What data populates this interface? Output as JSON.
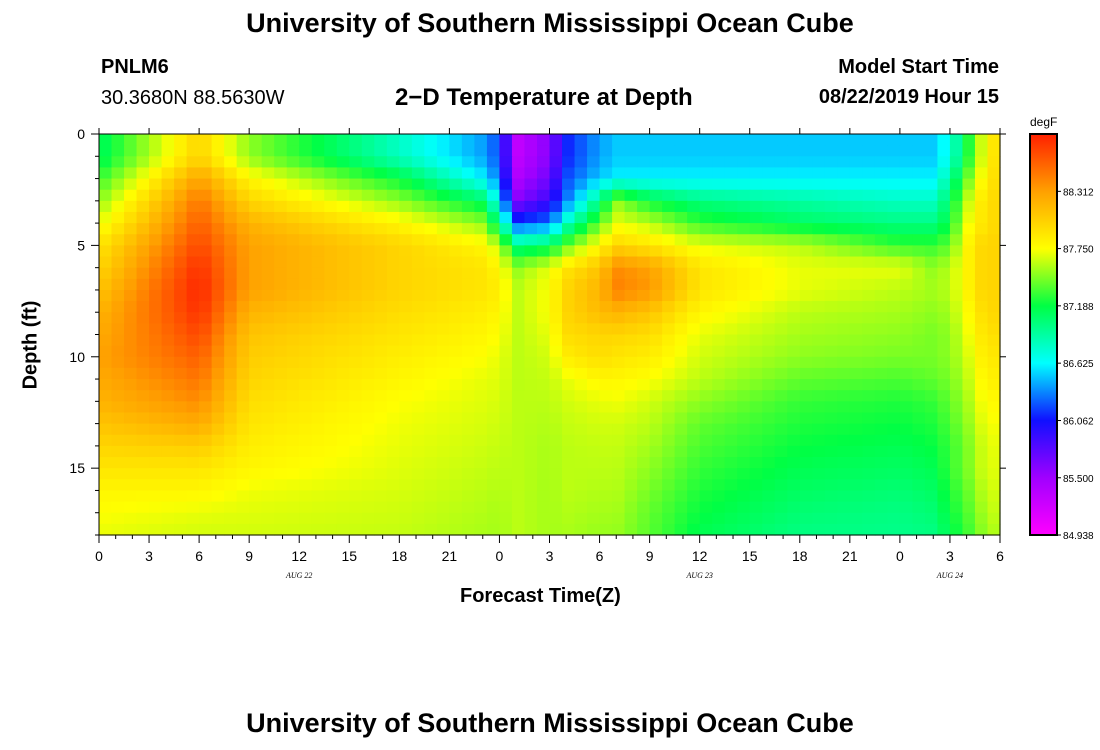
{
  "header": {
    "title": "University of Southern Mississippi Ocean Cube",
    "station_id": "PNLM6",
    "coordinates": "30.3680N 88.5630W",
    "plot_title": "2−D Temperature at Depth",
    "model_label": "Model Start Time",
    "model_start": "08/22/2019 Hour 15"
  },
  "footer": {
    "title": "University of Southern Mississippi Ocean Cube"
  },
  "chart_data": {
    "type": "heatmap",
    "title": "2−D Temperature at Depth",
    "xlabel": "Forecast Time(Z)",
    "ylabel": "Depth (ft)",
    "x_range_hours": [
      0,
      54
    ],
    "ylim": [
      0,
      18
    ],
    "y_reversed": true,
    "x_tick_labels": [
      "0",
      "3",
      "6",
      "9",
      "12",
      "15",
      "18",
      "21",
      "0",
      "3",
      "6",
      "9",
      "12",
      "15",
      "18",
      "21",
      "0",
      "3",
      "6"
    ],
    "y_ticks": [
      0,
      5,
      10,
      15
    ],
    "date_labels": [
      {
        "label": "AUG 22",
        "hour": 12
      },
      {
        "label": "AUG 23",
        "hour": 36
      },
      {
        "label": "AUG 24",
        "hour": 51
      }
    ],
    "colorbar": {
      "unit": "degF",
      "min": 84.938,
      "max": 88.875,
      "tick_labels": [
        "88.312",
        "87.750",
        "87.188",
        "86.625",
        "86.062",
        "85.500",
        "84.938"
      ],
      "tick_values": [
        88.312,
        87.75,
        87.188,
        86.625,
        86.062,
        85.5,
        84.938
      ],
      "colors": [
        "#ff00ff",
        "#a000ff",
        "#1010ff",
        "#00ffff",
        "#00ff44",
        "#ffff00",
        "#ffa000",
        "#ff2000"
      ]
    },
    "time_hours": [
      0,
      6,
      9,
      18,
      23,
      24,
      25,
      27,
      28,
      30,
      31,
      33,
      36,
      42,
      48,
      50,
      51,
      52,
      53,
      54
    ],
    "depth_ft": [
      0,
      1,
      2,
      3,
      4,
      5,
      6,
      7,
      8,
      9,
      10,
      11,
      12,
      13,
      14,
      15,
      16,
      17,
      18
    ],
    "temperature_degF": [
      [
        87.1,
        88.0,
        87.5,
        86.8,
        86.4,
        86.2,
        85.3,
        85.6,
        86.1,
        86.4,
        86.5,
        86.5,
        86.5,
        86.5,
        86.5,
        86.5,
        86.7,
        87.2,
        87.7,
        88.0
      ],
      [
        87.1,
        88.0,
        87.5,
        86.8,
        86.4,
        86.2,
        85.3,
        85.6,
        86.1,
        86.4,
        86.5,
        86.5,
        86.5,
        86.5,
        86.5,
        86.5,
        86.7,
        87.2,
        87.7,
        88.0
      ],
      [
        87.3,
        88.3,
        87.8,
        87.2,
        86.6,
        86.3,
        85.4,
        85.7,
        86.2,
        86.5,
        86.6,
        86.6,
        86.6,
        86.6,
        86.6,
        86.6,
        86.9,
        87.4,
        87.8,
        88.0
      ],
      [
        87.5,
        88.5,
        88.0,
        87.5,
        87.1,
        86.6,
        85.6,
        85.9,
        86.3,
        87.0,
        87.5,
        87.2,
        87.0,
        86.9,
        86.8,
        86.8,
        87.1,
        87.6,
        87.9,
        88.0
      ],
      [
        87.7,
        88.6,
        88.2,
        87.8,
        87.5,
        87.0,
        86.2,
        86.3,
        86.8,
        87.4,
        87.7,
        87.6,
        87.3,
        87.1,
        87.0,
        87.0,
        87.2,
        87.7,
        87.9,
        88.0
      ],
      [
        87.9,
        88.7,
        88.3,
        88.0,
        87.8,
        87.6,
        87.0,
        87.1,
        87.4,
        87.8,
        88.0,
        87.9,
        87.7,
        87.6,
        87.3,
        87.3,
        87.4,
        87.8,
        88.0,
        88.0
      ],
      [
        88.0,
        88.8,
        88.3,
        88.0,
        87.9,
        87.8,
        87.5,
        87.7,
        87.9,
        88.1,
        88.4,
        88.3,
        87.9,
        87.7,
        87.7,
        87.5,
        87.6,
        87.8,
        88.0,
        88.0
      ],
      [
        88.1,
        88.85,
        88.3,
        88.0,
        87.9,
        87.85,
        87.6,
        87.75,
        88.0,
        88.2,
        88.45,
        88.35,
        87.9,
        87.7,
        87.6,
        87.55,
        87.6,
        87.8,
        88.0,
        88.0
      ],
      [
        88.2,
        88.8,
        88.2,
        87.95,
        87.85,
        87.8,
        87.6,
        87.75,
        88.0,
        88.15,
        88.2,
        88.1,
        87.8,
        87.6,
        87.55,
        87.5,
        87.55,
        87.75,
        87.95,
        88.0
      ],
      [
        88.25,
        88.7,
        88.1,
        87.9,
        87.8,
        87.75,
        87.6,
        87.7,
        87.95,
        88.0,
        88.0,
        87.95,
        87.7,
        87.55,
        87.5,
        87.45,
        87.5,
        87.7,
        87.9,
        87.95
      ],
      [
        88.3,
        88.6,
        88.05,
        87.85,
        87.75,
        87.7,
        87.6,
        87.65,
        87.85,
        87.95,
        87.9,
        87.85,
        87.65,
        87.5,
        87.45,
        87.45,
        87.5,
        87.65,
        87.85,
        87.9
      ],
      [
        88.25,
        88.5,
        88.0,
        87.8,
        87.7,
        87.68,
        87.6,
        87.62,
        87.7,
        87.8,
        87.8,
        87.75,
        87.6,
        87.4,
        87.35,
        87.4,
        87.45,
        87.6,
        87.8,
        87.85
      ],
      [
        88.2,
        88.4,
        87.95,
        87.75,
        87.68,
        87.66,
        87.6,
        87.6,
        87.65,
        87.7,
        87.72,
        87.65,
        87.5,
        87.3,
        87.25,
        87.3,
        87.4,
        87.55,
        87.75,
        87.8
      ],
      [
        88.1,
        88.25,
        87.9,
        87.72,
        87.66,
        87.64,
        87.6,
        87.58,
        87.62,
        87.65,
        87.65,
        87.6,
        87.4,
        87.25,
        87.2,
        87.25,
        87.35,
        87.5,
        87.7,
        87.75
      ],
      [
        88.0,
        88.05,
        87.85,
        87.7,
        87.64,
        87.62,
        87.6,
        87.56,
        87.6,
        87.62,
        87.62,
        87.55,
        87.35,
        87.2,
        87.15,
        87.2,
        87.3,
        87.45,
        87.65,
        87.72
      ],
      [
        87.9,
        87.9,
        87.8,
        87.68,
        87.62,
        87.6,
        87.6,
        87.56,
        87.6,
        87.6,
        87.6,
        87.5,
        87.3,
        87.15,
        87.1,
        87.15,
        87.3,
        87.45,
        87.65,
        87.7
      ],
      [
        87.8,
        87.8,
        87.72,
        87.66,
        87.6,
        87.58,
        87.6,
        87.55,
        87.6,
        87.58,
        87.58,
        87.45,
        87.25,
        87.1,
        87.05,
        87.1,
        87.25,
        87.4,
        87.6,
        87.68
      ],
      [
        87.75,
        87.7,
        87.68,
        87.64,
        87.58,
        87.56,
        87.6,
        87.55,
        87.58,
        87.55,
        87.55,
        87.4,
        87.2,
        87.05,
        87.0,
        87.05,
        87.2,
        87.35,
        87.55,
        87.65
      ],
      [
        87.7,
        87.65,
        87.65,
        87.62,
        87.56,
        87.55,
        87.6,
        87.55,
        87.56,
        87.52,
        87.52,
        87.38,
        87.15,
        87.0,
        86.98,
        87.0,
        87.15,
        87.3,
        87.5,
        87.6
      ]
    ]
  }
}
